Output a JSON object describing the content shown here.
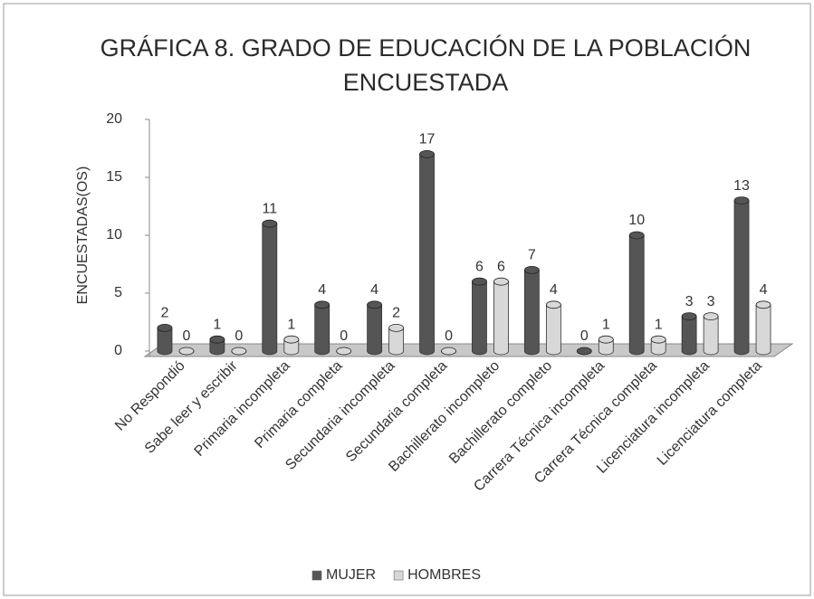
{
  "chart_data": {
    "type": "bar",
    "title": "GRÁFICA 8. GRADO DE EDUCACIÓN DE LA POBLACIÓN ENCUESTADA",
    "y_label": "ENCUESTADAS(OS)",
    "categories": [
      "No Respondió",
      "Sabe leer y escribir",
      "Primaria incompleta",
      "Primaria completa",
      "Secundaria incompleta",
      "Secundaria completa",
      "Bachillerato incompleto",
      "Bachillerato completo",
      "Carrera Técnica incompleta",
      "Carrera Técnica completa",
      "Licenciatura incompleta",
      "Licenciatura completa"
    ],
    "series": [
      {
        "name": "MUJER",
        "color": "#555555",
        "values": [
          2,
          1,
          11,
          4,
          4,
          17,
          6,
          7,
          0,
          10,
          3,
          13
        ]
      },
      {
        "name": "HOMBRES",
        "color": "#d8d8d8",
        "values": [
          0,
          0,
          1,
          0,
          2,
          0,
          6,
          4,
          1,
          1,
          3,
          4
        ]
      }
    ],
    "ylim": [
      0,
      20
    ],
    "yticks": [
      0,
      5,
      10,
      15,
      20
    ],
    "legend": "bottom"
  }
}
